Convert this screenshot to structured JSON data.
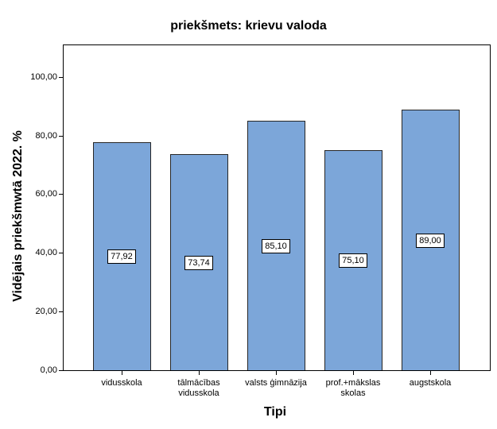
{
  "figure": {
    "background": "#ffffff"
  },
  "chart_data": {
    "type": "bar",
    "title": "priekšmets: krievu valoda",
    "xlabel": "Tipi",
    "ylabel": "Vidējais priekšmwtā 2022. %",
    "categories": [
      "vidusskola",
      "tālmācības vidusskola",
      "valsts ģimnāzija",
      "prof.+mākslas skolas",
      "augstskola"
    ],
    "category_label_lines": [
      [
        "vidusskola"
      ],
      [
        "tālmācības",
        "vidusskola"
      ],
      [
        "valsts ģimnāzija"
      ],
      [
        "prof.+mākslas",
        "skolas"
      ],
      [
        "augstskola"
      ]
    ],
    "values": [
      77.92,
      73.74,
      85.1,
      75.1,
      89.0
    ],
    "value_labels": [
      "77,92",
      "73,74",
      "85,10",
      "75,10",
      "89,00"
    ],
    "y_ticks": [
      {
        "value": 0,
        "label": "0,00"
      },
      {
        "value": 20,
        "label": "20,00"
      },
      {
        "value": 40,
        "label": "40,00"
      },
      {
        "value": 60,
        "label": "60,00"
      },
      {
        "value": 80,
        "label": "80,00"
      },
      {
        "value": 100,
        "label": "100,00"
      }
    ],
    "ylim": [
      0,
      111
    ],
    "grid": false,
    "legend": false,
    "bar_color": "#7CA6D9",
    "bar_border_color": "#262626",
    "axis_color": "#000000"
  }
}
